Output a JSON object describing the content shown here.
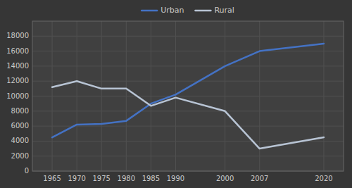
{
  "chart_data": {
    "type": "line",
    "x": [
      1965,
      1970,
      1975,
      1980,
      1985,
      1990,
      2000,
      2007,
      2020
    ],
    "series": [
      {
        "name": "Urban",
        "color": "#4472c4",
        "values": [
          4500,
          6200,
          6300,
          6700,
          9000,
          10200,
          14000,
          16000,
          17000
        ]
      },
      {
        "name": "Rural",
        "color": "#b8c4d4",
        "values": [
          11200,
          12000,
          11000,
          11000,
          8700,
          9800,
          8000,
          3000,
          4500
        ]
      }
    ],
    "xlim": [
      1961,
      2024
    ],
    "xticks": [
      1965,
      1970,
      1975,
      1980,
      1985,
      1990,
      2000,
      2007,
      2020
    ],
    "ylim": [
      0,
      20000
    ],
    "yticks": [
      0,
      2000,
      4000,
      6000,
      8000,
      10000,
      12000,
      14000,
      16000,
      18000
    ],
    "grid": true,
    "legend": "top"
  }
}
